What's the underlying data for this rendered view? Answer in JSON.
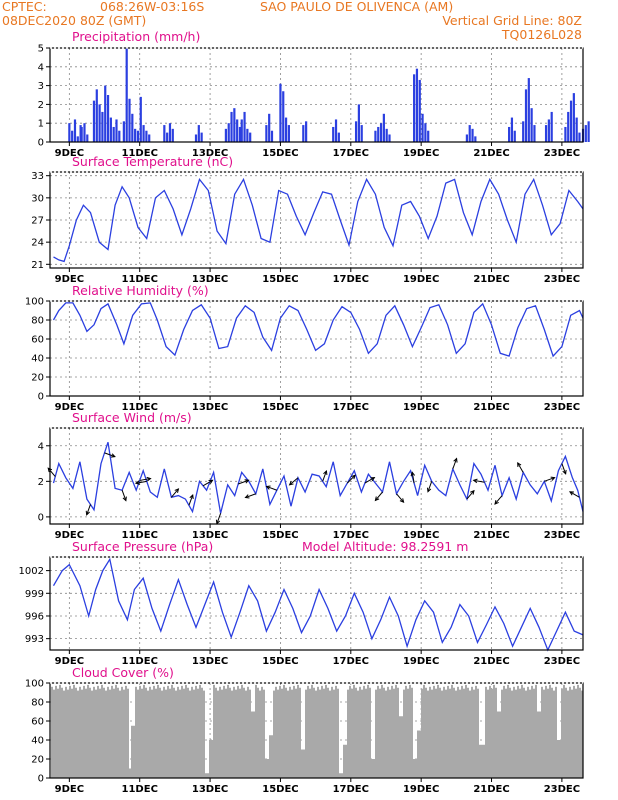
{
  "header": {
    "line1_left": "CPTEC:",
    "line1_coords": "068:26W-03:16S",
    "line1_place": "SAO PAULO DE OLIVENCA (AM)",
    "line2_left": "08DEC2020 80Z (GMT)",
    "line2_right": "Vertical Grid Line: 80Z",
    "line3_right": "TQ0126L028"
  },
  "colors": {
    "series": "#2b3fe0",
    "arrow": "#000000",
    "cloud": "#a9a9a9",
    "header": "#e87722",
    "title": "#e0108c",
    "grid": "#888888"
  },
  "chart_data": [
    {
      "type": "bar",
      "title": "Precipitation (mm/h)",
      "xticks": [
        "9DEC",
        "11DEC",
        "13DEC",
        "15DEC",
        "17DEC",
        "19DEC",
        "21DEC",
        "23DEC"
      ],
      "ylim": [
        0,
        5
      ],
      "yticks": [
        "0",
        "1",
        "2",
        "3",
        "4",
        "5"
      ],
      "episodes": [
        {
          "day": 0.0,
          "values": [
            1.0,
            0.6,
            1.2,
            0.3,
            0.9
          ]
        },
        {
          "day": 0.35,
          "values": [
            0.8,
            1.0,
            0.4
          ]
        },
        {
          "day": 0.7,
          "values": [
            2.2,
            2.8,
            2.0,
            1.6,
            3.0,
            2.5,
            1.3,
            0.8,
            1.2,
            0.6
          ]
        },
        {
          "day": 1.55,
          "values": [
            1.1,
            5.0,
            2.3,
            1.5,
            0.7
          ]
        },
        {
          "day": 1.95,
          "values": [
            0.6,
            2.4,
            0.9,
            0.6,
            0.4
          ]
        },
        {
          "day": 2.7,
          "values": [
            0.9,
            0.5,
            1.0,
            0.7
          ]
        },
        {
          "day": 3.6,
          "values": [
            0.4,
            0.9,
            0.5
          ]
        },
        {
          "day": 4.45,
          "values": [
            0.7,
            1.0,
            1.6,
            1.8,
            1.2,
            0.8
          ]
        },
        {
          "day": 4.9,
          "values": [
            1.2,
            1.6,
            0.7,
            0.5
          ]
        },
        {
          "day": 5.6,
          "values": [
            0.9,
            1.5,
            0.6
          ]
        },
        {
          "day": 6.0,
          "values": [
            3.1,
            2.7,
            1.3,
            0.9
          ]
        },
        {
          "day": 6.65,
          "values": [
            0.9,
            1.1
          ]
        },
        {
          "day": 7.5,
          "values": [
            0.8,
            1.2,
            0.5
          ]
        },
        {
          "day": 8.15,
          "values": [
            1.1,
            2.0,
            0.9
          ]
        },
        {
          "day": 8.7,
          "values": [
            0.6,
            0.8,
            1.0,
            1.5,
            0.7,
            0.4
          ]
        },
        {
          "day": 9.8,
          "values": [
            3.6,
            3.9,
            3.3,
            1.5,
            1.0,
            0.6
          ]
        },
        {
          "day": 11.3,
          "values": [
            0.4,
            0.9,
            0.7,
            0.3
          ]
        },
        {
          "day": 12.5,
          "values": [
            0.8,
            1.3,
            0.6
          ]
        },
        {
          "day": 12.9,
          "values": [
            1.1,
            2.8,
            3.4,
            1.8,
            0.9
          ]
        },
        {
          "day": 13.55,
          "values": [
            0.9,
            1.2,
            1.6
          ]
        },
        {
          "day": 14.1,
          "values": [
            0.8,
            1.6,
            2.2,
            2.6,
            1.3,
            0.5
          ]
        },
        {
          "day": 14.6,
          "values": [
            0.7,
            0.9,
            1.1
          ]
        }
      ]
    },
    {
      "type": "line",
      "title": "Surface Temperature (nC)",
      "xticks": [
        "9DEC",
        "11DEC",
        "13DEC",
        "15DEC",
        "17DEC",
        "19DEC",
        "21DEC",
        "23DEC"
      ],
      "ylim": [
        20.5,
        33.5
      ],
      "yticks": [
        "21",
        "24",
        "27",
        "30",
        "33"
      ],
      "x": [
        -0.45,
        -0.3,
        -0.15,
        0.0,
        0.2,
        0.4,
        0.6,
        0.85,
        1.1,
        1.3,
        1.5,
        1.7,
        1.95,
        2.2,
        2.45,
        2.7,
        2.95,
        3.2,
        3.45,
        3.7,
        3.95,
        4.2,
        4.45,
        4.7,
        4.95,
        5.2,
        5.45,
        5.7,
        5.95,
        6.2,
        6.45,
        6.7,
        6.95,
        7.2,
        7.45,
        7.7,
        7.95,
        8.2,
        8.45,
        8.7,
        8.95,
        9.2,
        9.45,
        9.7,
        9.95,
        10.2,
        10.45,
        10.7,
        10.95,
        11.2,
        11.45,
        11.7,
        11.95,
        12.2,
        12.45,
        12.7,
        12.95,
        13.2,
        13.45,
        13.7,
        13.95,
        14.2,
        14.45,
        14.6
      ],
      "values": [
        22.0,
        21.6,
        21.4,
        23.5,
        27.0,
        29.0,
        28.0,
        24.0,
        23.0,
        29.0,
        31.5,
        30.0,
        26.0,
        24.5,
        30.0,
        31.0,
        28.5,
        25.0,
        28.5,
        32.5,
        31.0,
        25.5,
        23.8,
        30.5,
        32.5,
        29.0,
        24.5,
        24.0,
        31.0,
        30.5,
        27.5,
        25.0,
        28.0,
        30.8,
        30.5,
        27.0,
        23.6,
        29.5,
        32.5,
        30.5,
        26.0,
        23.5,
        29.0,
        29.5,
        27.5,
        24.5,
        27.5,
        32.0,
        32.5,
        28.0,
        25.0,
        29.5,
        32.5,
        30.5,
        27.0,
        24.0,
        30.5,
        32.5,
        29.0,
        25.0,
        26.5,
        31.0,
        29.5,
        28.5
      ]
    },
    {
      "type": "line",
      "title": "Relative Humidity (%)",
      "xticks": [
        "9DEC",
        "11DEC",
        "13DEC",
        "15DEC",
        "17DEC",
        "19DEC",
        "21DEC",
        "23DEC"
      ],
      "ylim": [
        0,
        100
      ],
      "yticks": [
        "0",
        "20",
        "40",
        "60",
        "80",
        "100"
      ],
      "x": [
        -0.45,
        -0.3,
        -0.1,
        0.1,
        0.3,
        0.5,
        0.7,
        0.9,
        1.1,
        1.35,
        1.55,
        1.8,
        2.05,
        2.3,
        2.5,
        2.75,
        3.0,
        3.25,
        3.5,
        3.75,
        4.0,
        4.25,
        4.5,
        4.75,
        5.0,
        5.25,
        5.5,
        5.75,
        6.0,
        6.25,
        6.5,
        6.75,
        7.0,
        7.25,
        7.5,
        7.75,
        8.0,
        8.25,
        8.5,
        8.75,
        9.0,
        9.25,
        9.5,
        9.75,
        10.0,
        10.25,
        10.5,
        10.75,
        11.0,
        11.25,
        11.5,
        11.75,
        12.0,
        12.25,
        12.5,
        12.75,
        13.0,
        13.25,
        13.5,
        13.75,
        14.0,
        14.25,
        14.5,
        14.6
      ],
      "values": [
        80,
        90,
        98,
        98,
        85,
        68,
        75,
        92,
        97,
        75,
        55,
        85,
        97,
        98,
        80,
        52,
        43,
        70,
        90,
        96,
        82,
        50,
        52,
        82,
        95,
        88,
        62,
        48,
        82,
        95,
        90,
        70,
        48,
        55,
        80,
        94,
        88,
        70,
        45,
        55,
        85,
        95,
        75,
        52,
        72,
        93,
        96,
        75,
        45,
        55,
        88,
        97,
        75,
        45,
        42,
        72,
        92,
        95,
        70,
        42,
        52,
        85,
        90,
        82
      ]
    },
    {
      "type": "line",
      "title": "Surface Wind (m/s)",
      "xticks": [
        "9DEC",
        "11DEC",
        "13DEC",
        "15DEC",
        "17DEC",
        "19DEC",
        "21DEC",
        "23DEC"
      ],
      "ylim": [
        -0.4,
        5.0
      ],
      "yticks": [
        "0",
        "2",
        "4"
      ],
      "x": [
        -0.45,
        -0.3,
        -0.1,
        0.1,
        0.3,
        0.5,
        0.7,
        0.9,
        1.1,
        1.3,
        1.5,
        1.7,
        1.9,
        2.1,
        2.3,
        2.5,
        2.7,
        2.9,
        3.1,
        3.3,
        3.5,
        3.7,
        3.9,
        4.1,
        4.3,
        4.5,
        4.7,
        4.9,
        5.1,
        5.3,
        5.5,
        5.7,
        5.9,
        6.1,
        6.3,
        6.5,
        6.7,
        6.9,
        7.1,
        7.3,
        7.5,
        7.7,
        7.9,
        8.1,
        8.3,
        8.5,
        8.7,
        8.9,
        9.1,
        9.3,
        9.5,
        9.7,
        9.9,
        10.1,
        10.3,
        10.5,
        10.7,
        10.9,
        11.1,
        11.3,
        11.5,
        11.7,
        11.9,
        12.1,
        12.3,
        12.5,
        12.7,
        12.9,
        13.1,
        13.3,
        13.5,
        13.7,
        13.9,
        14.1,
        14.3,
        14.45,
        14.6
      ],
      "values": [
        1.9,
        3.0,
        2.2,
        1.6,
        3.1,
        1.0,
        0.4,
        3.0,
        4.2,
        1.6,
        1.5,
        2.5,
        1.5,
        2.6,
        1.4,
        1.1,
        2.7,
        1.1,
        1.2,
        1.0,
        0.3,
        2.0,
        1.5,
        2.5,
        0.2,
        1.8,
        1.2,
        2.5,
        2.0,
        1.3,
        2.7,
        0.7,
        1.5,
        2.3,
        0.6,
        2.2,
        1.4,
        2.4,
        2.3,
        1.7,
        3.1,
        1.2,
        1.9,
        2.6,
        1.4,
        2.4,
        1.9,
        1.4,
        3.1,
        1.3,
        2.0,
        2.6,
        1.2,
        2.9,
        2.0,
        1.5,
        1.2,
        2.7,
        1.8,
        1.0,
        3.0,
        2.4,
        1.5,
        2.9,
        1.2,
        2.2,
        1.0,
        2.5,
        1.8,
        1.3,
        2.0,
        0.9,
        2.6,
        3.4,
        2.2,
        1.5,
        0.3
      ],
      "arrows": [
        {
          "day": -0.4,
          "dir": 320
        },
        {
          "day": 0.6,
          "dir": 200
        },
        {
          "day": 1.0,
          "dir": 110
        },
        {
          "day": 1.5,
          "dir": 160
        },
        {
          "day": 2.0,
          "dir": 80
        },
        {
          "day": 2.2,
          "dir": 260
        },
        {
          "day": 2.9,
          "dir": 40
        },
        {
          "day": 3.4,
          "dir": 20
        },
        {
          "day": 3.8,
          "dir": 60
        },
        {
          "day": 4.3,
          "dir": 200
        },
        {
          "day": 4.8,
          "dir": 70
        },
        {
          "day": 5.3,
          "dir": 250
        },
        {
          "day": 5.9,
          "dir": 290
        },
        {
          "day": 6.5,
          "dir": 230
        },
        {
          "day": 7.2,
          "dir": 20
        },
        {
          "day": 7.9,
          "dir": 45
        },
        {
          "day": 8.4,
          "dir": 60
        },
        {
          "day": 8.9,
          "dir": 220
        },
        {
          "day": 9.3,
          "dir": 140
        },
        {
          "day": 9.8,
          "dir": 350
        },
        {
          "day": 10.3,
          "dir": 200
        },
        {
          "day": 10.9,
          "dir": 20
        },
        {
          "day": 11.3,
          "dir": 40
        },
        {
          "day": 11.8,
          "dir": 280
        },
        {
          "day": 12.3,
          "dir": 220
        },
        {
          "day": 12.9,
          "dir": 330
        },
        {
          "day": 13.5,
          "dir": 70
        },
        {
          "day": 14.0,
          "dir": 160
        },
        {
          "day": 14.5,
          "dir": 300
        }
      ]
    },
    {
      "type": "line",
      "title": "Surface Pressure (hPa)",
      "annotation": "Model Altitude: 98.2591 m",
      "xticks": [
        "9DEC",
        "11DEC",
        "13DEC",
        "15DEC",
        "17DEC",
        "19DEC",
        "21DEC",
        "23DEC"
      ],
      "ylim": [
        991.5,
        1003.8
      ],
      "yticks": [
        "993",
        "996",
        "999",
        "1002"
      ],
      "x": [
        -0.45,
        -0.2,
        0.0,
        0.3,
        0.55,
        0.75,
        0.95,
        1.15,
        1.4,
        1.65,
        1.85,
        2.1,
        2.35,
        2.6,
        2.85,
        3.1,
        3.35,
        3.6,
        3.85,
        4.1,
        4.35,
        4.6,
        4.85,
        5.1,
        5.35,
        5.6,
        5.85,
        6.1,
        6.35,
        6.6,
        6.85,
        7.1,
        7.35,
        7.6,
        7.85,
        8.1,
        8.35,
        8.6,
        8.85,
        9.1,
        9.35,
        9.6,
        9.85,
        10.1,
        10.35,
        10.6,
        10.85,
        11.1,
        11.35,
        11.6,
        11.85,
        12.1,
        12.35,
        12.6,
        12.85,
        13.1,
        13.35,
        13.6,
        13.85,
        14.1,
        14.35,
        14.6
      ],
      "values": [
        1000.0,
        1002.0,
        1002.8,
        1000.0,
        996.0,
        999.5,
        1002.0,
        1003.5,
        998.0,
        995.5,
        999.5,
        1001.0,
        997.0,
        994.0,
        997.5,
        1000.8,
        997.5,
        994.5,
        997.5,
        1000.5,
        996.5,
        993.2,
        996.5,
        1000.0,
        998.0,
        994.0,
        996.5,
        999.5,
        997.0,
        993.8,
        996.0,
        999.5,
        997.0,
        994.0,
        996.0,
        999.0,
        996.5,
        993.0,
        995.5,
        998.5,
        996.0,
        992.0,
        995.5,
        998.0,
        996.5,
        992.5,
        994.5,
        997.5,
        996.0,
        992.5,
        994.8,
        997.2,
        995.0,
        992.0,
        994.5,
        997.0,
        994.5,
        991.5,
        994.0,
        996.5,
        994.0,
        993.5
      ]
    },
    {
      "type": "area",
      "title": "Cloud Cover (%)",
      "xticks": [
        "9DEC",
        "11DEC",
        "13DEC",
        "15DEC",
        "17DEC",
        "19DEC",
        "21DEC",
        "23DEC"
      ],
      "ylim": [
        0,
        100
      ],
      "yticks": [
        "0",
        "20",
        "40",
        "60",
        "80",
        "100"
      ],
      "base": 95,
      "dips": [
        {
          "day": 1.7,
          "value": 10
        },
        {
          "day": 1.8,
          "value": 55
        },
        {
          "day": 3.9,
          "value": 5
        },
        {
          "day": 4.0,
          "value": 40
        },
        {
          "day": 5.2,
          "value": 70
        },
        {
          "day": 5.6,
          "value": 20
        },
        {
          "day": 5.7,
          "value": 45
        },
        {
          "day": 6.6,
          "value": 30
        },
        {
          "day": 7.7,
          "value": 5
        },
        {
          "day": 7.8,
          "value": 35
        },
        {
          "day": 8.6,
          "value": 20
        },
        {
          "day": 9.4,
          "value": 65
        },
        {
          "day": 9.8,
          "value": 20
        },
        {
          "day": 9.9,
          "value": 50
        },
        {
          "day": 11.7,
          "value": 35
        },
        {
          "day": 12.2,
          "value": 70
        },
        {
          "day": 13.3,
          "value": 70
        },
        {
          "day": 13.9,
          "value": 40
        }
      ]
    }
  ]
}
